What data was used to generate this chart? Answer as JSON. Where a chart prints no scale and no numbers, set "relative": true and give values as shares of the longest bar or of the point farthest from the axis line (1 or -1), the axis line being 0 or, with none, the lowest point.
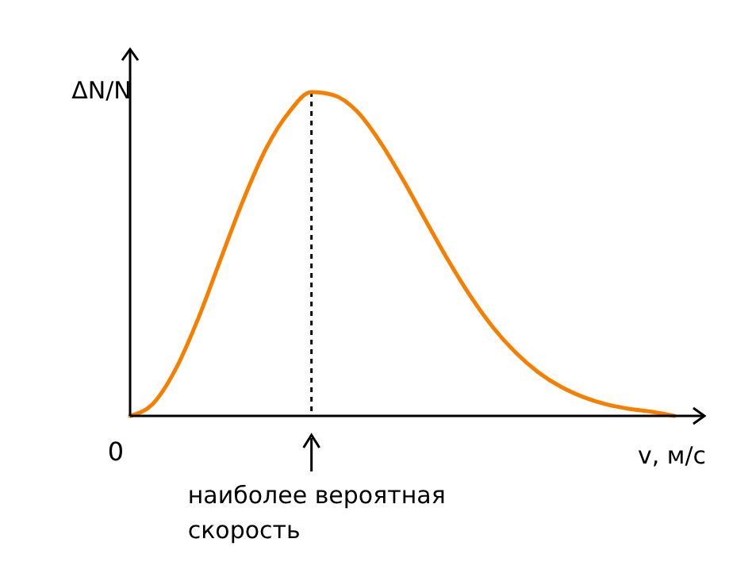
{
  "chart_data": {
    "type": "line",
    "relative": true,
    "xlabel": "v, м/с",
    "ylabel": "ΔN/N",
    "categories": [
      null,
      null,
      null,
      null,
      null,
      null,
      null,
      null,
      null,
      null,
      null,
      null,
      null,
      null,
      null,
      null,
      null,
      null,
      null,
      null,
      null,
      null,
      null,
      null,
      null
    ],
    "series": [
      {
        "color": "#f77f00",
        "values": [
          0,
          0.037,
          0.143,
          0.3,
          0.485,
          0.668,
          0.826,
          0.937,
          1,
          0.99,
          0.941,
          0.849,
          0.734,
          0.608,
          0.484,
          0.371,
          0.274,
          0.196,
          0.135,
          0.09,
          0.058,
          0.036,
          0.022,
          0.013,
          0
        ]
      }
    ],
    "annotations": [
      "0",
      "наиболее вероятная скорость"
    ],
    "line_style": "solid"
  }
}
